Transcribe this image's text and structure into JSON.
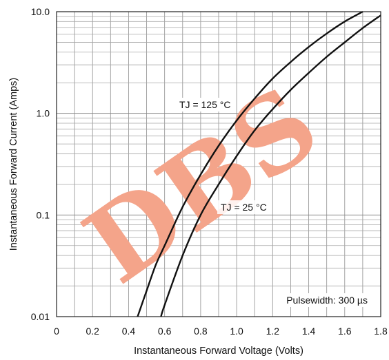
{
  "chart_data": {
    "type": "line",
    "xlabel": "Instantaneous Forward Voltage (Volts)",
    "ylabel": "Instantaneous Forward Current (Amps)",
    "x_scale": "linear",
    "y_scale": "log",
    "xlim": [
      0,
      1.8
    ],
    "ylim": [
      0.01,
      10.0
    ],
    "x_ticks": [
      0,
      0.2,
      0.4,
      0.6,
      0.8,
      1.0,
      1.2,
      1.4,
      1.6,
      1.8
    ],
    "x_tick_labels": [
      "0",
      "0.2",
      "0.4",
      "0.6",
      "0.8",
      "1.0",
      "1.2",
      "1.4",
      "1.6",
      "1.8"
    ],
    "y_ticks": [
      0.01,
      0.1,
      1.0,
      10.0
    ],
    "y_tick_labels": [
      "0.01",
      "0.1",
      "1.0",
      "10.0"
    ],
    "grid": true,
    "series": [
      {
        "name": "TJ = 125 °C",
        "x": [
          0.45,
          0.5,
          0.55,
          0.6,
          0.7,
          0.8,
          0.9,
          1.0,
          1.1,
          1.2,
          1.3,
          1.4,
          1.5,
          1.6,
          1.7
        ],
        "y": [
          0.01,
          0.018,
          0.032,
          0.05,
          0.12,
          0.25,
          0.48,
          0.85,
          1.4,
          2.2,
          3.2,
          4.5,
          6.1,
          8.0,
          10.0
        ]
      },
      {
        "name": "TJ = 25 °C",
        "x": [
          0.58,
          0.6,
          0.7,
          0.8,
          0.9,
          1.0,
          1.1,
          1.2,
          1.3,
          1.4,
          1.5,
          1.6,
          1.7,
          1.8
        ],
        "y": [
          0.01,
          0.013,
          0.04,
          0.1,
          0.2,
          0.38,
          0.68,
          1.1,
          1.7,
          2.5,
          3.6,
          5.0,
          6.9,
          9.2
        ]
      }
    ],
    "annotations": [
      "Pulsewidth: 300 µs"
    ]
  },
  "watermark": {
    "text": "DBS",
    "color": "#f4a48a"
  }
}
